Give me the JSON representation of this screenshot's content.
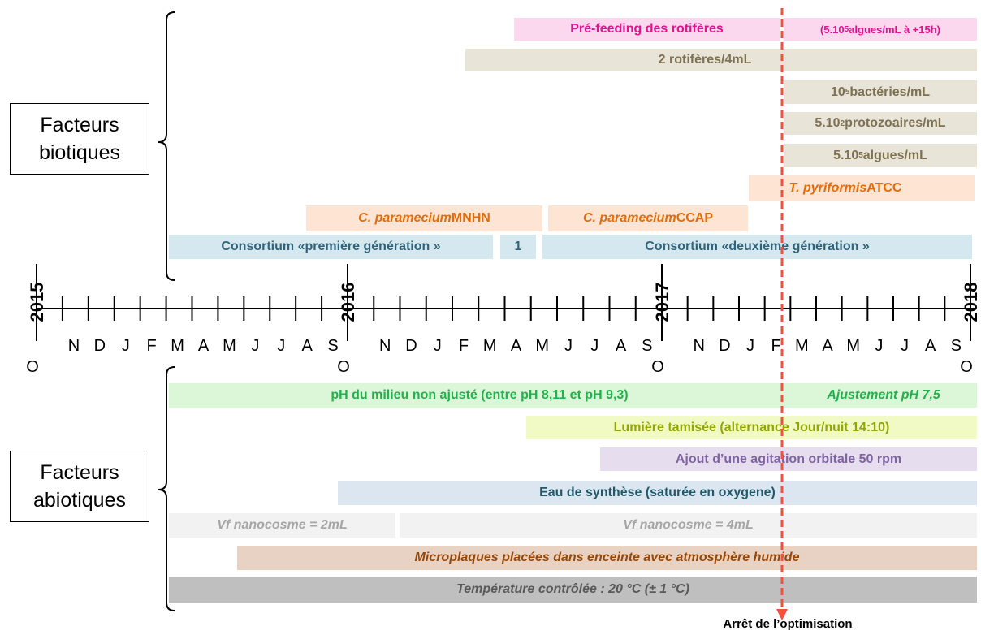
{
  "labels": {
    "biotic": "Facteurs biotiques",
    "abiotic": "Facteurs abiotiques"
  },
  "biotic": [
    [
      "Pré-feeding des rotifères"
    ],
    [
      "(5.10",
      "5",
      " algues/mL à +15h)"
    ],
    [
      "2 rotifères/4mL"
    ],
    [
      "10",
      "5",
      " bactéries/mL"
    ],
    [
      "5.10",
      "2",
      " protozoaires/mL"
    ],
    [
      "5.10",
      "5",
      " algues/mL"
    ],
    [
      "T. pyriformis",
      " ATCC"
    ],
    [
      "C. paramecium",
      " MNHN"
    ],
    [
      "C. paramecium",
      " CCAP"
    ],
    [
      "Consortium «première génération »"
    ],
    [
      "1"
    ],
    [
      "Consortium «deuxième génération »"
    ]
  ],
  "timeline": {
    "years": [
      "2015",
      "2016",
      "2017",
      "2018"
    ],
    "months": [
      "O",
      "N",
      "D",
      "J",
      "F",
      "M",
      "A",
      "M",
      "J",
      "J",
      "A",
      "S",
      "O",
      "N",
      "D",
      "J",
      "F",
      "M",
      "A",
      "M",
      "J",
      "J",
      "A",
      "S",
      "O",
      "N",
      "D",
      "J",
      "F",
      "M",
      "A",
      "M",
      "J",
      "J",
      "A",
      "S",
      "O"
    ]
  },
  "abiotic": [
    [
      "pH du milieu non ajusté (entre pH 8,11 et pH 9,3)",
      "Ajustement pH 7,5"
    ],
    [
      "Lumière tamisée (alternance Jour/nuit 14:10)"
    ],
    [
      "Ajout d’une agitation orbitale 50 rpm"
    ],
    [
      "Eau de synthèse (saturée en oxygene)"
    ],
    [
      "Vf nanocosme = 2mL"
    ],
    [
      "Vf nanocosme = 4mL"
    ],
    [
      "Microplaques placées dans enceinte avec atmosphère humide"
    ],
    [
      "Température contrôlée : 20 °C (± 1 °C)"
    ]
  ],
  "stop": "Arrêt de l’optimisation"
}
